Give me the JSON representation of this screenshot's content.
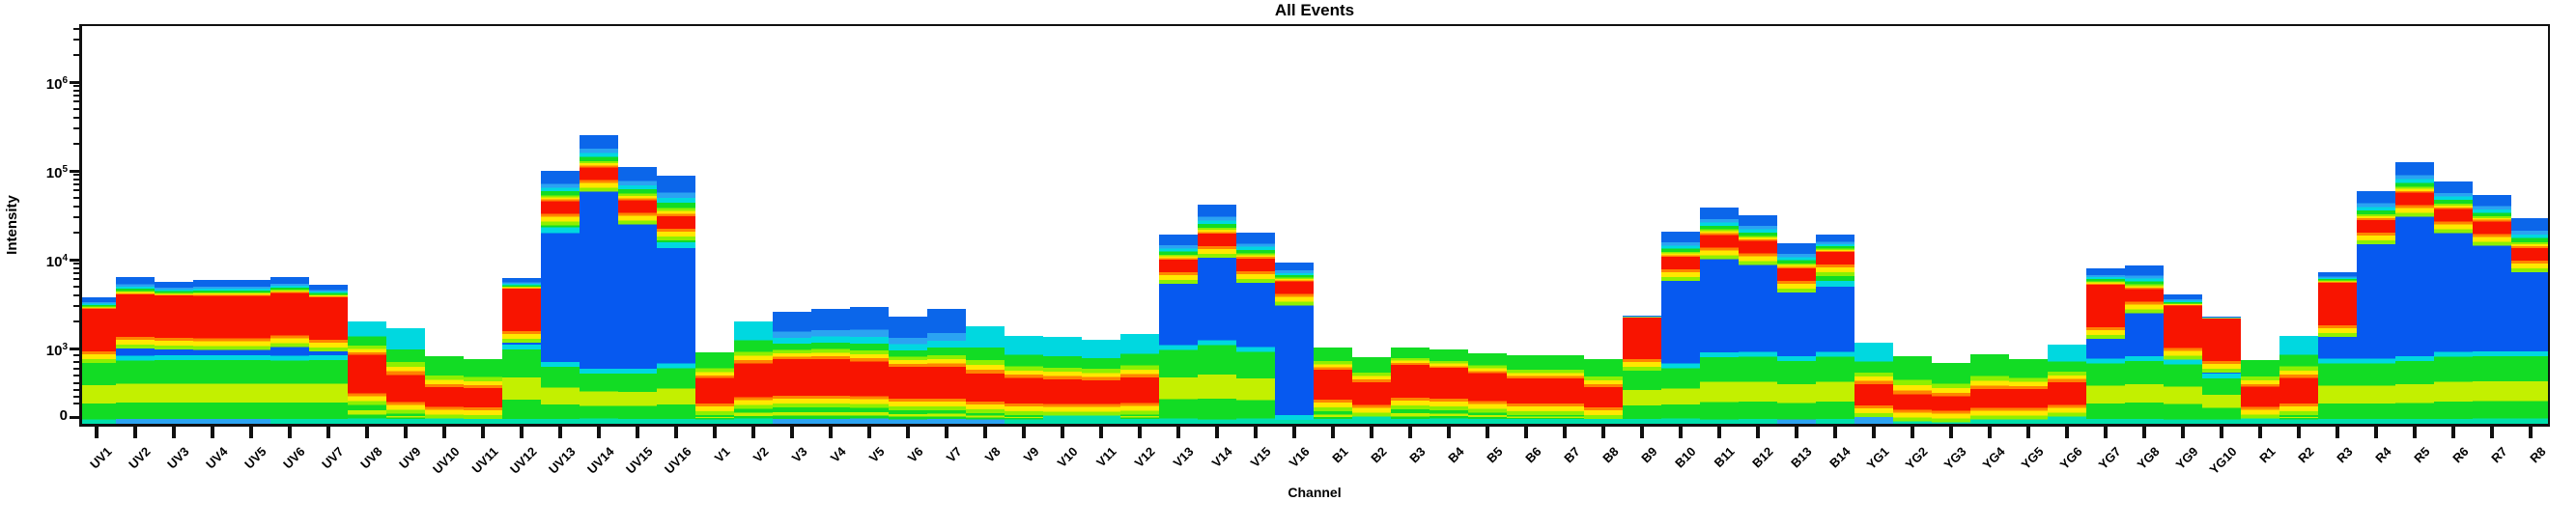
{
  "title": "All Events",
  "x_axis": {
    "label": "Channel"
  },
  "y_axis": {
    "label": "Intensity",
    "ticks": [
      {
        "value": 1000000,
        "base": "10",
        "exp": "6"
      },
      {
        "value": 100000,
        "base": "10",
        "exp": "5"
      },
      {
        "value": 10000,
        "base": "10",
        "exp": "4"
      },
      {
        "value": 1000,
        "base": "10",
        "exp": "3"
      },
      {
        "value": 0,
        "text": "0"
      }
    ]
  },
  "palette": {
    "red": "#f81400",
    "orange": "#ff8400",
    "yellow": "#ffe800",
    "ygreen": "#8ef000",
    "tinge": "#c3f000",
    "green": "#12dc24",
    "teal": "#00e0ac",
    "cyan": "#00d8e0",
    "sky": "#2ba3f2",
    "blue": "#0b66ea",
    "valley_blue": "#0659f0",
    "axis": "#101010",
    "background": "#ffffff"
  },
  "chart_data": {
    "type": "heatmap",
    "subtype": "per-channel vertical density bands (spectral flow cytometry raw intensities)",
    "title": "All Events",
    "xlabel": "Channel",
    "ylabel": "Intensity",
    "y_scale": "biexponential: linear 0 to 1e3, log 1e3 to 1e6",
    "ylim": [
      0,
      2500000
    ],
    "density_colors_low_to_high": [
      "blue",
      "cyan",
      "green",
      "yellow",
      "red"
    ],
    "channels": [
      {
        "name": "UV1",
        "max": 3800,
        "mode": 1800
      },
      {
        "name": "UV2",
        "max": 6400,
        "mode": 2600,
        "valley": [
          900,
          1500
        ],
        "blue_bottom": true
      },
      {
        "name": "UV3",
        "max": 5600,
        "mode": 2500,
        "valley": [
          900,
          1500
        ],
        "blue_bottom": true
      },
      {
        "name": "UV4",
        "max": 5900,
        "mode": 2500,
        "valley": [
          900,
          1500
        ],
        "blue_bottom": true
      },
      {
        "name": "UV5",
        "max": 5900,
        "mode": 2500,
        "valley": [
          900,
          1500
        ],
        "blue_bottom": true
      },
      {
        "name": "UV6",
        "max": 6400,
        "mode": 2700,
        "valley": [
          900,
          1500
        ]
      },
      {
        "name": "UV7",
        "max": 5200,
        "mode": 2400,
        "valley": [
          900,
          1500
        ]
      },
      {
        "name": "UV8",
        "max": 2000,
        "mode": 650
      },
      {
        "name": "UV9",
        "max": 1700,
        "mode": 430
      },
      {
        "name": "UV10",
        "max": 890,
        "mode": 300
      },
      {
        "name": "UV11",
        "max": 850,
        "mode": 290
      },
      {
        "name": "UV12",
        "max": 6200,
        "mode": 3000,
        "valley": [
          1100,
          1900
        ]
      },
      {
        "name": "UV13",
        "max": 100000,
        "mode": 39000,
        "valley": [
          800,
          20000
        ]
      },
      {
        "name": "UV14",
        "max": 250000,
        "mode": 93000,
        "valley": [
          700,
          50000
        ]
      },
      {
        "name": "UV15",
        "max": 110000,
        "mode": 40000,
        "valley": [
          700,
          25000
        ]
      },
      {
        "name": "UV16",
        "max": 88000,
        "mode": 26500,
        "valley": [
          780,
          13500
        ]
      },
      {
        "name": "V1",
        "max": 950,
        "mode": 400
      },
      {
        "name": "V2",
        "max": 2000,
        "mode": 550
      },
      {
        "name": "V3",
        "max": 2600,
        "mode": 600,
        "blue_bottom": true
      },
      {
        "name": "V4",
        "max": 2800,
        "mode": 600,
        "blue_bottom": true
      },
      {
        "name": "V5",
        "max": 2900,
        "mode": 570,
        "blue_bottom": true
      },
      {
        "name": "V6",
        "max": 2300,
        "mode": 520,
        "blue_bottom": true
      },
      {
        "name": "V7",
        "max": 2800,
        "mode": 520,
        "blue_bottom": true
      },
      {
        "name": "V8",
        "max": 1800,
        "mode": 450,
        "blue_bottom": true
      },
      {
        "name": "V9",
        "max": 1400,
        "mode": 400
      },
      {
        "name": "V10",
        "max": 1350,
        "mode": 380
      },
      {
        "name": "V11",
        "max": 1250,
        "mode": 370
      },
      {
        "name": "V12",
        "max": 1450,
        "mode": 400
      },
      {
        "name": "V13",
        "max": 19000,
        "mode": 8500,
        "valley": [
          1080,
          4840
        ]
      },
      {
        "name": "V14",
        "max": 42000,
        "mode": 17000,
        "valley": [
          1250,
          11600
        ]
      },
      {
        "name": "V15",
        "max": 20000,
        "mode": 8800,
        "valley": [
          1030,
          5600
        ]
      },
      {
        "name": "V16",
        "max": 9300,
        "mode": 4900,
        "valley": [
          30,
          2600
        ]
      },
      {
        "name": "B1",
        "max": 1030,
        "mode": 490
      },
      {
        "name": "B2",
        "max": 870,
        "mode": 350
      },
      {
        "name": "B3",
        "max": 1030,
        "mode": 540
      },
      {
        "name": "B4",
        "max": 980,
        "mode": 500
      },
      {
        "name": "B5",
        "max": 930,
        "mode": 450
      },
      {
        "name": "B6",
        "max": 900,
        "mode": 390
      },
      {
        "name": "B7",
        "max": 900,
        "mode": 390
      },
      {
        "name": "B8",
        "max": 850,
        "mode": 300
      },
      {
        "name": "B9",
        "max": 2340,
        "mode": 1450
      },
      {
        "name": "B10",
        "max": 20500,
        "mode": 9200,
        "valley": [
          780,
          4950
        ]
      },
      {
        "name": "B11",
        "max": 39000,
        "mode": 16500,
        "valley": [
          950,
          9100
        ]
      },
      {
        "name": "B12",
        "max": 31700,
        "mode": 14000,
        "valley": [
          950,
          7600
        ]
      },
      {
        "name": "B13",
        "max": 15400,
        "mode": 6900,
        "valley": [
          890,
          3900
        ],
        "blue_bottom": true
      },
      {
        "name": "B14",
        "max": 19200,
        "mode": 10500,
        "valley": [
          950,
          5000
        ]
      },
      {
        "name": "YG1",
        "max": 1160,
        "mode": 330,
        "blue_bottom": true
      },
      {
        "name": "YG2",
        "max": 890,
        "mode": 220
      },
      {
        "name": "YG3",
        "max": 790,
        "mode": 200
      },
      {
        "name": "YG4",
        "max": 920,
        "mode": 280
      },
      {
        "name": "YG5",
        "max": 850,
        "mode": 280
      },
      {
        "name": "YG6",
        "max": 1100,
        "mode": 350
      },
      {
        "name": "YG7",
        "max": 8000,
        "mode": 3350,
        "valley": [
          850,
          2200
        ]
      },
      {
        "name": "YG8",
        "max": 8600,
        "mode": 4000,
        "valley": [
          890,
          2800
        ]
      },
      {
        "name": "YG9",
        "max": 4100,
        "mode": 1950,
        "valley": [
          880,
          1230
        ]
      },
      {
        "name": "YG10",
        "max": 2300,
        "mode": 1400,
        "valley": [
          640,
          1080
        ]
      },
      {
        "name": "R1",
        "max": 830,
        "mode": 300
      },
      {
        "name": "R2",
        "max": 1400,
        "mode": 400
      },
      {
        "name": "R3",
        "max": 7200,
        "mode": 3500,
        "valley": [
          850,
          2200
        ]
      },
      {
        "name": "R4",
        "max": 59000,
        "mode": 24000,
        "valley": [
          850,
          13100
        ]
      },
      {
        "name": "R5",
        "max": 126000,
        "mode": 49000,
        "valley": [
          890,
          31700
        ]
      },
      {
        "name": "R6",
        "max": 76000,
        "mode": 32000,
        "valley": [
          950,
          26000
        ]
      },
      {
        "name": "R7",
        "max": 53000,
        "mode": 23000,
        "valley": [
          950,
          14900
        ]
      },
      {
        "name": "R8",
        "max": 29000,
        "mode": 11500,
        "valley": [
          950,
          7300
        ]
      }
    ]
  }
}
